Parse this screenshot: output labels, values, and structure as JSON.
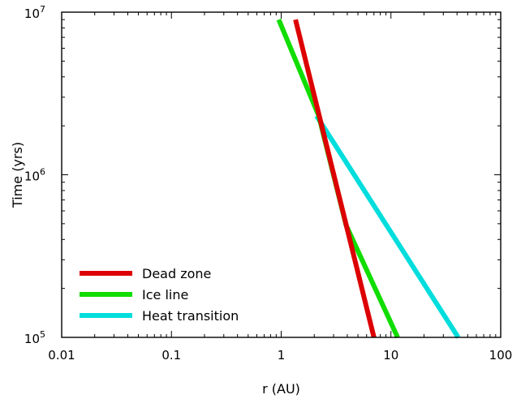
{
  "chart_data": {
    "type": "line",
    "title": "",
    "xlabel": "r (AU)",
    "ylabel": "Time (yrs)",
    "xscale": "log",
    "yscale": "log",
    "xlim": [
      0.01,
      100
    ],
    "ylim": [
      100000,
      10000000
    ],
    "x_ticks": [
      {
        "value": 0.01,
        "label": "0.01"
      },
      {
        "value": 0.1,
        "label": "0.1"
      },
      {
        "value": 1,
        "label": "1"
      },
      {
        "value": 10,
        "label": "10"
      },
      {
        "value": 100,
        "label": "100"
      }
    ],
    "y_ticks": [
      {
        "value": 100000,
        "base": "10",
        "exp": "5"
      },
      {
        "value": 1000000,
        "base": "10",
        "exp": "6"
      },
      {
        "value": 10000000,
        "base": "10",
        "exp": "7"
      }
    ],
    "grid": false,
    "legend": {
      "position": "bottom-left"
    },
    "series": [
      {
        "name": "Dead zone",
        "color": "#dd0000",
        "points": [
          [
            1.35,
            9000000
          ],
          [
            7.0,
            100000
          ]
        ]
      },
      {
        "name": "Ice line",
        "color": "#11dd00",
        "points": [
          [
            0.95,
            9000000
          ],
          [
            2.2,
            2300000
          ],
          [
            3.9,
            490000
          ],
          [
            11.5,
            100000
          ]
        ]
      },
      {
        "name": "Heat transition",
        "color": "#00dddd",
        "points": [
          [
            2.1,
            2300000
          ],
          [
            41.0,
            100000
          ]
        ]
      }
    ],
    "draw_order": [
      "Heat transition",
      "Ice line",
      "Dead zone"
    ]
  }
}
